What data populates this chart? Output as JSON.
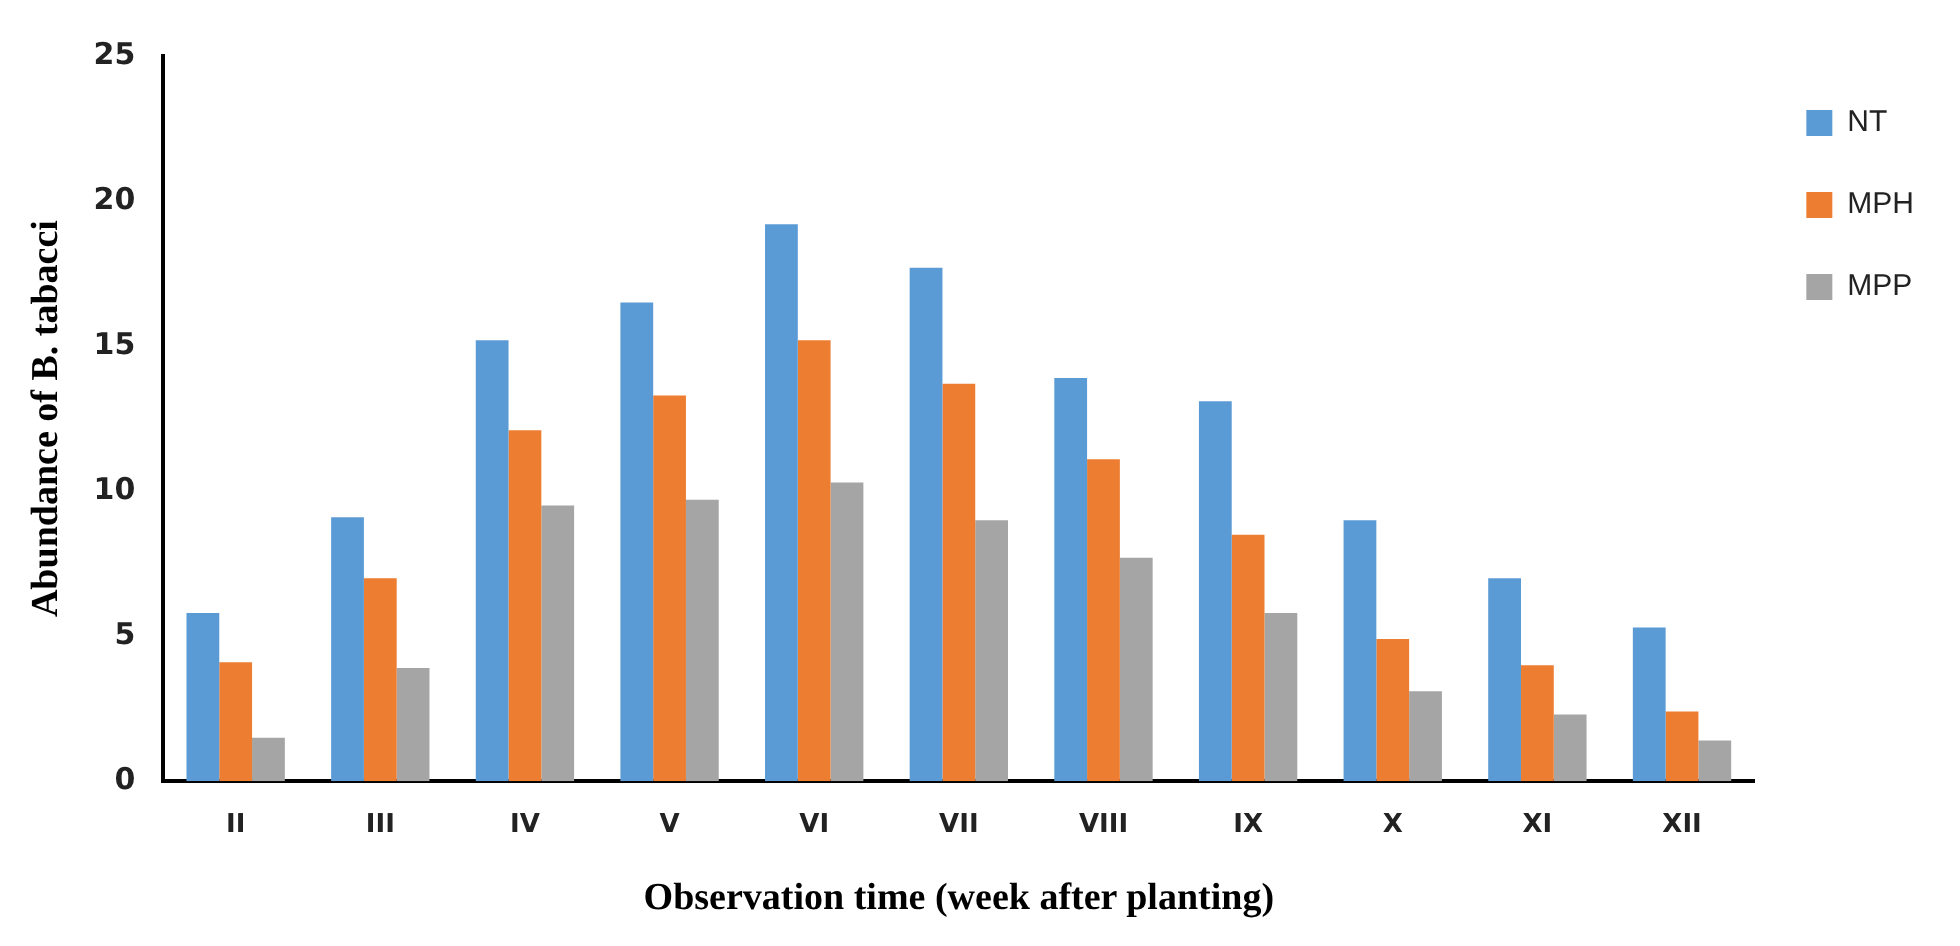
{
  "chart_data": {
    "type": "bar",
    "xlabel": "Observation time (week after planting)",
    "ylabel": "Abundance of B. tabacci",
    "categories": [
      "II",
      "III",
      "IV",
      "V",
      "VI",
      "VII",
      "VIII",
      "IX",
      "X",
      "XI",
      "XII"
    ],
    "series": [
      {
        "name": "NT",
        "color": "#5b9bd5",
        "values": [
          5.8,
          9.1,
          15.2,
          16.5,
          19.2,
          17.7,
          13.9,
          13.1,
          9.0,
          7.0,
          5.3
        ]
      },
      {
        "name": "MPH",
        "color": "#ed7d31",
        "values": [
          4.1,
          7.0,
          12.1,
          13.3,
          15.2,
          13.7,
          11.1,
          8.5,
          4.9,
          4.0,
          2.4
        ]
      },
      {
        "name": "MPP",
        "color": "#a5a5a5",
        "values": [
          1.5,
          3.9,
          9.5,
          9.7,
          10.3,
          9.0,
          7.7,
          5.8,
          3.1,
          2.3,
          1.4
        ]
      }
    ],
    "ylim": [
      0,
      25
    ],
    "yticks": [
      0,
      5,
      10,
      15,
      20,
      25
    ],
    "grid": false,
    "legend": "top right"
  }
}
